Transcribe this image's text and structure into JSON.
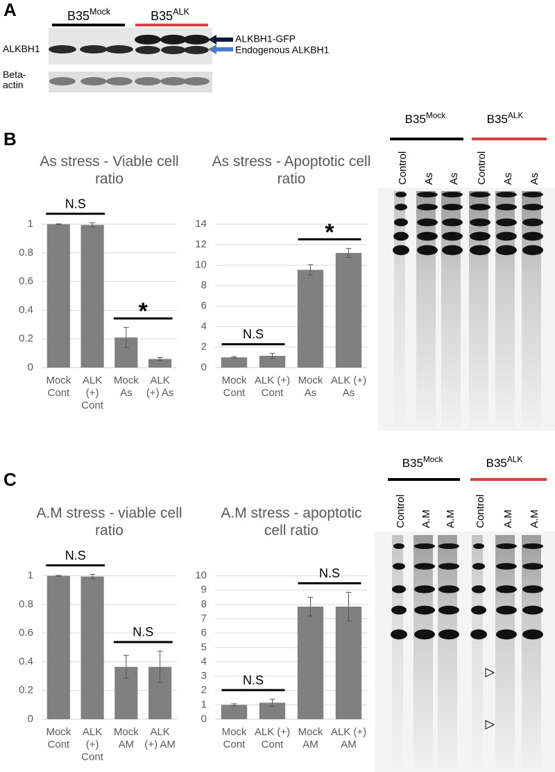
{
  "panel_labels": [
    "A",
    "B",
    "C"
  ],
  "blot": {
    "groups": [
      {
        "name": "B35",
        "sup": "Mock",
        "color": "#000000"
      },
      {
        "name": "B35",
        "sup": "ALK",
        "color": "#e03c3c"
      }
    ],
    "row_labels": [
      "ALKBH1",
      "Beta-actin"
    ],
    "arrow_labels": [
      "ALKBH1-GFP",
      "Endogenous ALKBH1"
    ]
  },
  "gel_b": {
    "groups": [
      {
        "name": "B35",
        "sup": "Mock",
        "color": "#000000"
      },
      {
        "name": "B35",
        "sup": "ALK",
        "color": "#e03c3c"
      }
    ],
    "lanes": [
      "Control",
      "As",
      "As",
      "Control",
      "As",
      "As"
    ]
  },
  "gel_c": {
    "groups": [
      {
        "name": "B35",
        "sup": "Mock",
        "color": "#000000"
      },
      {
        "name": "B35",
        "sup": "ALK",
        "color": "#e03c3c"
      }
    ],
    "lanes": [
      "Control",
      "A.M",
      "A.M",
      "Control",
      "A.M",
      "A.M"
    ]
  },
  "chart_data": [
    {
      "type": "bar",
      "title": "As stress - Viable cell ratio",
      "color": "#808080",
      "categories": [
        "Mock Cont",
        "ALK (+) Cont",
        "Mock As",
        "ALK (+) As"
      ],
      "values": [
        1,
        0.995,
        0.21,
        0.06
      ],
      "errors": [
        0.003,
        0.015,
        0.07,
        0.01
      ],
      "ylim": [
        0,
        1.1
      ],
      "yticks": [
        0,
        0.2,
        0.4,
        0.6,
        0.8,
        1
      ],
      "grid": true,
      "annotations": [
        "N.S",
        "*"
      ]
    },
    {
      "type": "bar",
      "title": "As stress - Apoptotic cell ratio",
      "color": "#808080",
      "categories": [
        "Mock Cont",
        "ALK (+) Cont",
        "Mock As",
        "ALK (+) As"
      ],
      "values": [
        1,
        1.15,
        9.55,
        11.2
      ],
      "errors": [
        0.08,
        0.25,
        0.5,
        0.45
      ],
      "ylim": [
        0,
        15
      ],
      "yticks": [
        0,
        2,
        4,
        6,
        8,
        10,
        12,
        14
      ],
      "grid": true,
      "annotations": [
        "N.S",
        "*"
      ]
    },
    {
      "type": "bar",
      "title": "A.M stress - viable cell ratio",
      "color": "#808080",
      "categories": [
        "Mock Cont",
        "ALK (+) Cont",
        "Mock AM",
        "ALK (+) AM"
      ],
      "values": [
        1,
        0.995,
        0.365,
        0.365
      ],
      "errors": [
        0.003,
        0.015,
        0.08,
        0.11
      ],
      "ylim": [
        0,
        1.1
      ],
      "yticks": [
        0,
        0.2,
        0.4,
        0.6,
        0.8,
        1
      ],
      "grid": true,
      "annotations": [
        "N.S",
        "N.S"
      ]
    },
    {
      "type": "bar",
      "title": "A.M stress - apoptotic cell ratio",
      "color": "#808080",
      "categories": [
        "Mock Cont",
        "ALK (+) Cont",
        "Mock AM",
        "ALK (+) AM"
      ],
      "values": [
        1,
        1.15,
        7.85,
        7.85
      ],
      "errors": [
        0.08,
        0.25,
        0.65,
        1.0
      ],
      "ylim": [
        0,
        11
      ],
      "yticks": [
        0,
        1,
        2,
        3,
        4,
        5,
        6,
        7,
        8,
        9,
        10
      ],
      "grid": true,
      "annotations": [
        "N.S",
        "N.S"
      ]
    }
  ]
}
